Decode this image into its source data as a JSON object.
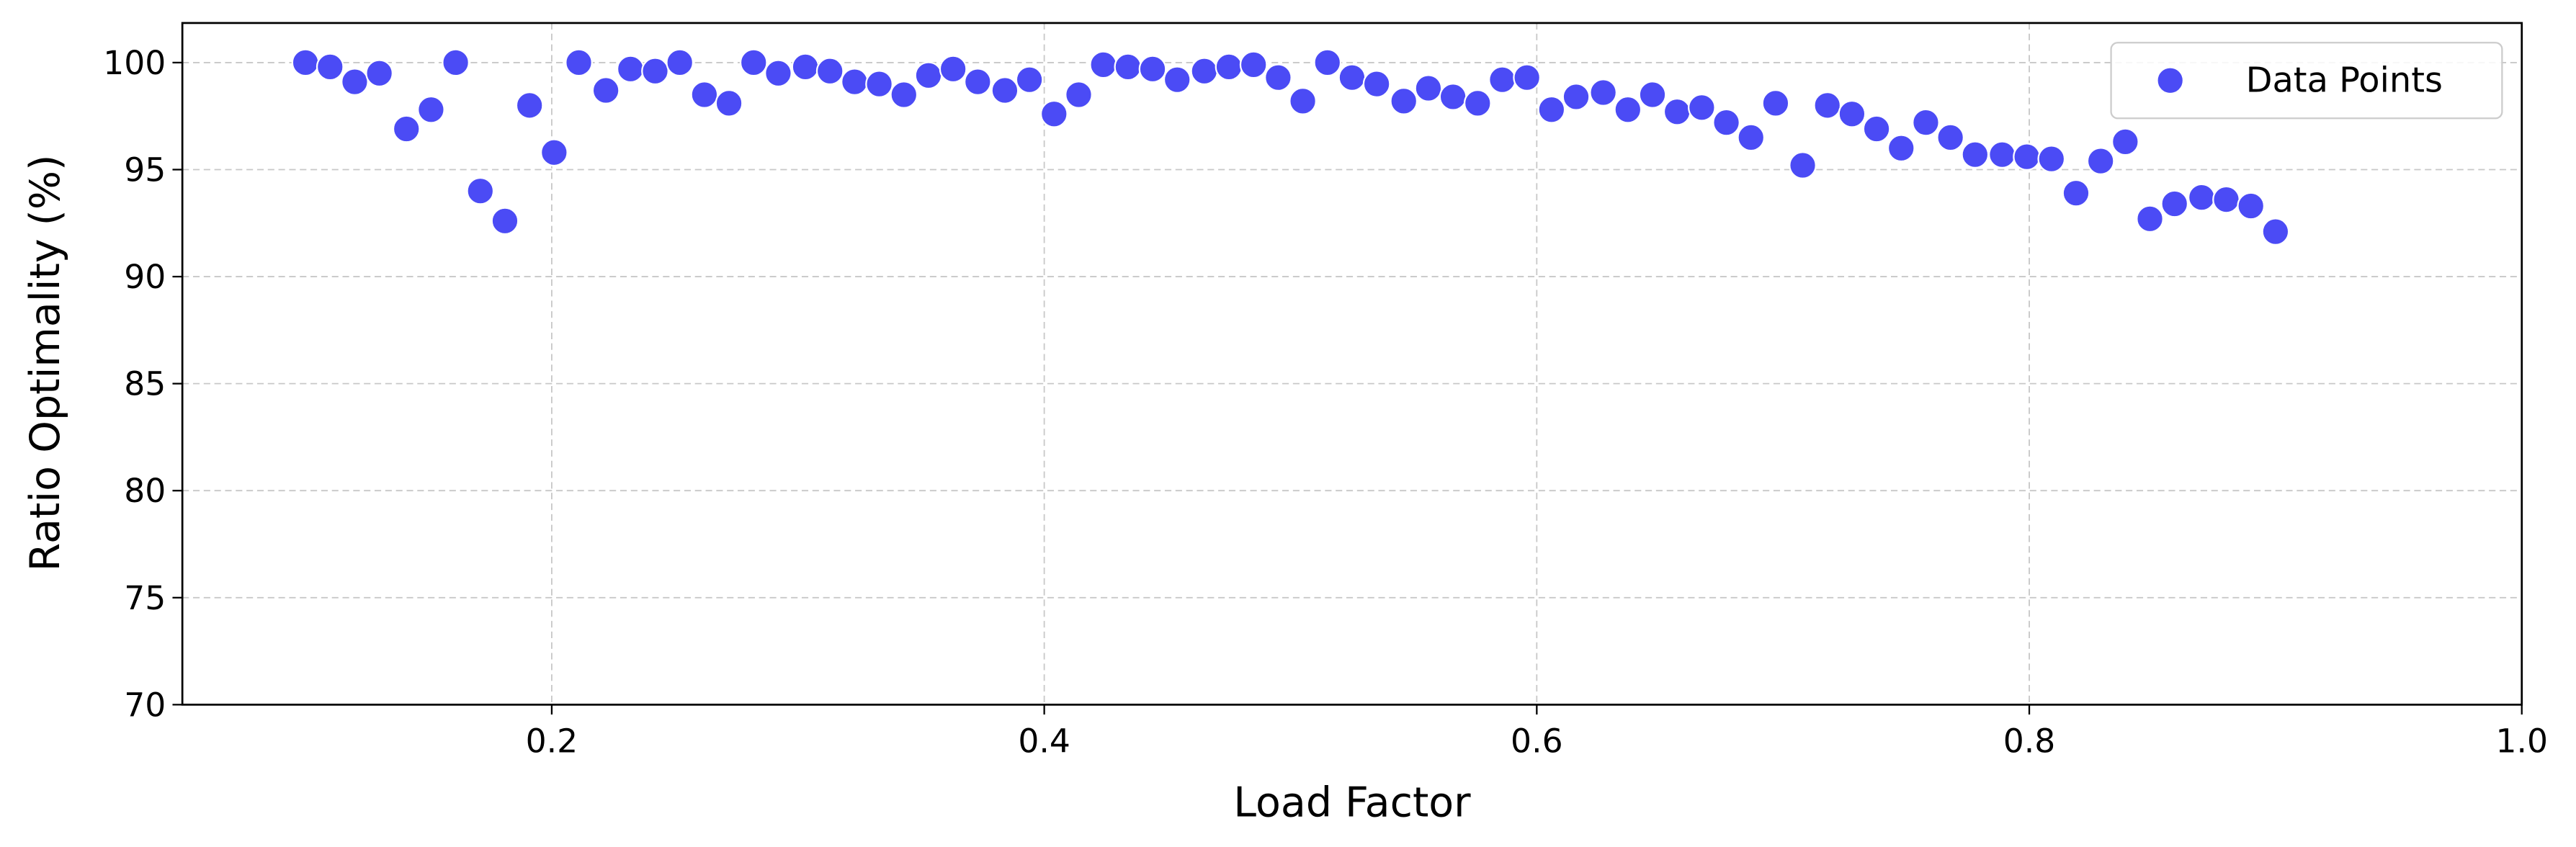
{
  "chart_data": {
    "type": "scatter",
    "xlabel": "Load Factor",
    "ylabel": "Ratio Optimality (%)",
    "xlim": [
      0.05,
      1.0
    ],
    "ylim": [
      70,
      101.85
    ],
    "xticks": [
      0.2,
      0.4,
      0.6,
      0.8,
      {
        "value": 1,
        "label": "1.0"
      }
    ],
    "yticks": [
      70,
      75,
      80,
      85,
      90,
      95,
      100
    ],
    "grid": true,
    "legend": "upper right",
    "series": [
      {
        "name": "Data Points",
        "color": "#4b4bf5",
        "x": [
          0.1,
          0.11,
          0.12,
          0.13,
          0.141,
          0.151,
          0.161,
          0.171,
          0.181,
          0.191,
          0.201,
          0.211,
          0.222,
          0.232,
          0.242,
          0.252,
          0.262,
          0.272,
          0.282,
          0.292,
          0.303,
          0.313,
          0.323,
          0.333,
          0.343,
          0.353,
          0.363,
          0.373,
          0.384,
          0.394,
          0.404,
          0.414,
          0.424,
          0.434,
          0.444,
          0.454,
          0.465,
          0.475,
          0.485,
          0.495,
          0.505,
          0.515,
          0.525,
          0.535,
          0.546,
          0.556,
          0.566,
          0.576,
          0.586,
          0.596,
          0.606,
          0.616,
          0.627,
          0.637,
          0.647,
          0.657,
          0.667,
          0.677,
          0.687,
          0.697,
          0.708,
          0.718,
          0.728,
          0.738,
          0.748,
          0.758,
          0.768,
          0.778,
          0.789,
          0.799,
          0.809,
          0.819,
          0.829,
          0.839,
          0.849,
          0.859,
          0.87,
          0.88,
          0.89,
          0.9
        ],
        "values": [
          100.0,
          99.8,
          99.1,
          99.5,
          96.9,
          97.8,
          100.0,
          94.0,
          92.6,
          98.0,
          95.8,
          100.0,
          98.7,
          99.7,
          99.6,
          100.0,
          98.5,
          98.1,
          100.0,
          99.5,
          99.8,
          99.6,
          99.1,
          99.0,
          98.5,
          99.4,
          99.7,
          99.1,
          98.7,
          99.2,
          97.6,
          98.5,
          99.9,
          99.8,
          99.7,
          99.2,
          99.6,
          99.8,
          99.9,
          99.3,
          98.2,
          100.0,
          99.3,
          99.0,
          98.2,
          98.8,
          98.4,
          98.1,
          99.2,
          99.3,
          97.8,
          98.4,
          98.6,
          97.8,
          98.5,
          97.7,
          97.9,
          97.2,
          96.5,
          98.1,
          95.2,
          98.0,
          97.6,
          96.9,
          96.0,
          97.2,
          96.5,
          95.7,
          95.7,
          95.6,
          95.5,
          93.9,
          95.4,
          96.3,
          92.7,
          93.4,
          93.7,
          93.6,
          93.3,
          92.1
        ]
      }
    ]
  }
}
